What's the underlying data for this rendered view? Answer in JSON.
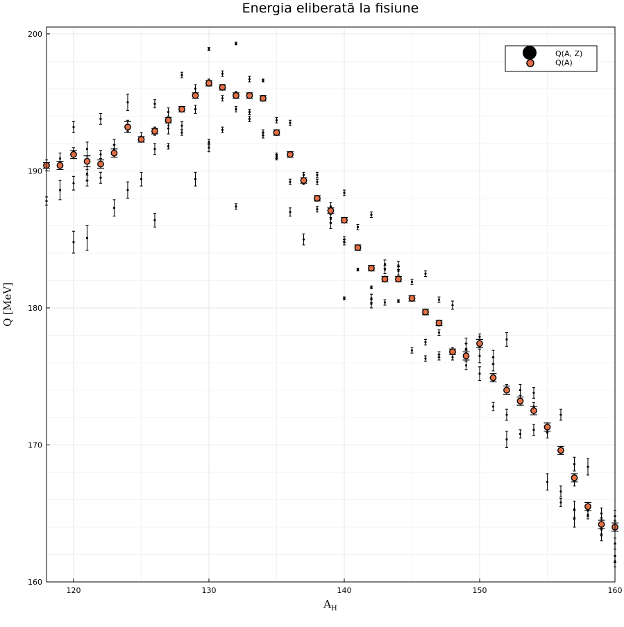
{
  "chart_data": {
    "type": "scatter",
    "title": "Energia eliberată la fisiune",
    "xlabel": "A",
    "xlabel_sub": "H",
    "ylabel": "Q  [MeV]",
    "xlim": [
      118,
      160
    ],
    "ylim": [
      160,
      200.5
    ],
    "xticks": [
      120,
      130,
      140,
      150,
      160
    ],
    "yticks": [
      160,
      170,
      180,
      190,
      200
    ],
    "grid": true,
    "legend_position": "top-right",
    "series": [
      {
        "name": "Q(A, Z)",
        "color": "#000000",
        "points": [
          [
            118,
            190.4,
            0.4
          ],
          [
            118,
            187.8,
            0.3
          ],
          [
            119,
            190.9,
            0.4
          ],
          [
            119,
            188.6,
            0.7
          ],
          [
            120,
            193.2,
            0.4
          ],
          [
            120,
            191.4,
            0.3
          ],
          [
            120,
            189.1,
            0.5
          ],
          [
            120,
            184.8,
            0.8
          ],
          [
            121,
            191.6,
            0.5
          ],
          [
            121,
            190.6,
            0.5
          ],
          [
            121,
            189.8,
            0.5
          ],
          [
            121,
            189.3,
            0.4
          ],
          [
            121,
            185.1,
            0.9
          ],
          [
            122,
            193.8,
            0.4
          ],
          [
            122,
            191.2,
            0.3
          ],
          [
            122,
            190.6,
            0.3
          ],
          [
            122,
            189.5,
            0.4
          ],
          [
            123,
            191.9,
            0.4
          ],
          [
            123,
            191.6,
            0.3
          ],
          [
            123,
            187.3,
            0.6
          ],
          [
            124,
            195.0,
            0.6
          ],
          [
            124,
            193.3,
            0.4
          ],
          [
            124,
            188.6,
            0.6
          ],
          [
            125,
            192.5,
            0.3
          ],
          [
            125,
            189.4,
            0.5
          ],
          [
            126,
            194.9,
            0.3
          ],
          [
            126,
            192.9,
            0.3
          ],
          [
            126,
            191.6,
            0.4
          ],
          [
            126,
            186.4,
            0.5
          ],
          [
            127,
            194.3,
            0.3
          ],
          [
            127,
            193.6,
            0.3
          ],
          [
            127,
            193.1,
            0.4
          ],
          [
            127,
            191.8,
            0.2
          ],
          [
            128,
            197.0,
            0.2
          ],
          [
            128,
            194.5,
            0.2
          ],
          [
            128,
            193.3,
            0.3
          ],
          [
            128,
            192.8,
            0.2
          ],
          [
            129,
            196.0,
            0.3
          ],
          [
            129,
            195.5,
            0.2
          ],
          [
            129,
            194.5,
            0.3
          ],
          [
            129,
            189.4,
            0.5
          ],
          [
            130,
            198.9,
            0.1
          ],
          [
            130,
            196.5,
            0.2
          ],
          [
            130,
            192.1,
            0.2
          ],
          [
            130,
            191.7,
            0.3
          ],
          [
            131,
            197.1,
            0.2
          ],
          [
            131,
            195.3,
            0.2
          ],
          [
            131,
            193.0,
            0.2
          ],
          [
            132,
            199.3,
            0.1
          ],
          [
            132,
            195.6,
            0.2
          ],
          [
            132,
            194.5,
            0.2
          ],
          [
            132,
            187.4,
            0.2
          ],
          [
            133,
            196.7,
            0.2
          ],
          [
            133,
            194.3,
            0.2
          ],
          [
            133,
            193.8,
            0.2
          ],
          [
            134,
            196.6,
            0.1
          ],
          [
            134,
            195.2,
            0.1
          ],
          [
            134,
            192.8,
            0.2
          ],
          [
            134,
            192.6,
            0.2
          ],
          [
            135,
            193.7,
            0.2
          ],
          [
            135,
            192.8,
            0.2
          ],
          [
            135,
            191.1,
            0.2
          ],
          [
            135,
            191.0,
            0.2
          ],
          [
            136,
            193.5,
            0.2
          ],
          [
            136,
            191.2,
            0.2
          ],
          [
            136,
            189.2,
            0.2
          ],
          [
            136,
            187.0,
            0.3
          ],
          [
            137,
            189.7,
            0.2
          ],
          [
            137,
            189.2,
            0.2
          ],
          [
            137,
            185.0,
            0.4
          ],
          [
            138,
            189.7,
            0.2
          ],
          [
            138,
            189.2,
            0.2
          ],
          [
            138,
            188.0,
            0.2
          ],
          [
            138,
            187.2,
            0.2
          ],
          [
            139,
            187.4,
            0.3
          ],
          [
            139,
            186.5,
            0.3
          ],
          [
            139,
            186.2,
            0.4
          ],
          [
            140,
            188.4,
            0.2
          ],
          [
            140,
            185.0,
            0.2
          ],
          [
            140,
            184.8,
            0.2
          ],
          [
            140,
            180.7,
            0.1
          ],
          [
            141,
            185.9,
            0.2
          ],
          [
            141,
            184.4,
            0.2
          ],
          [
            141,
            182.8,
            0.1
          ],
          [
            142,
            186.8,
            0.2
          ],
          [
            142,
            183.0,
            0.1
          ],
          [
            142,
            181.5,
            0.1
          ],
          [
            142,
            180.7,
            0.3
          ],
          [
            142,
            180.3,
            0.3
          ],
          [
            143,
            183.2,
            0.3
          ],
          [
            143,
            182.8,
            0.3
          ],
          [
            143,
            182.1,
            0.2
          ],
          [
            143,
            180.4,
            0.2
          ],
          [
            144,
            183.1,
            0.3
          ],
          [
            144,
            182.7,
            0.3
          ],
          [
            144,
            182.2,
            0.1
          ],
          [
            144,
            180.5,
            0.1
          ],
          [
            145,
            181.9,
            0.2
          ],
          [
            145,
            180.7,
            0.2
          ],
          [
            145,
            176.9,
            0.2
          ],
          [
            146,
            182.5,
            0.2
          ],
          [
            146,
            179.7,
            0.2
          ],
          [
            146,
            177.5,
            0.2
          ],
          [
            146,
            176.3,
            0.2
          ],
          [
            147,
            180.6,
            0.2
          ],
          [
            147,
            178.2,
            0.2
          ],
          [
            147,
            176.6,
            0.2
          ],
          [
            147,
            176.4,
            0.2
          ],
          [
            148,
            180.2,
            0.3
          ],
          [
            148,
            176.9,
            0.2
          ],
          [
            148,
            176.4,
            0.2
          ],
          [
            149,
            177.4,
            0.4
          ],
          [
            149,
            177.0,
            0.4
          ],
          [
            149,
            176.5,
            0.4
          ],
          [
            149,
            175.8,
            0.3
          ],
          [
            150,
            177.9,
            0.2
          ],
          [
            150,
            177.4,
            0.3
          ],
          [
            150,
            176.5,
            0.5
          ],
          [
            150,
            175.2,
            0.5
          ],
          [
            151,
            176.4,
            0.5
          ],
          [
            151,
            175.9,
            0.5
          ],
          [
            151,
            175.0,
            0.2
          ],
          [
            151,
            172.8,
            0.3
          ],
          [
            152,
            177.7,
            0.5
          ],
          [
            152,
            174.1,
            0.3
          ],
          [
            152,
            172.2,
            0.4
          ],
          [
            152,
            170.4,
            0.6
          ],
          [
            153,
            174.0,
            0.4
          ],
          [
            153,
            173.3,
            0.3
          ],
          [
            153,
            170.8,
            0.3
          ],
          [
            154,
            173.8,
            0.4
          ],
          [
            154,
            172.8,
            0.3
          ],
          [
            154,
            171.1,
            0.4
          ],
          [
            155,
            171.3,
            0.3
          ],
          [
            155,
            170.9,
            0.4
          ],
          [
            155,
            167.3,
            0.6
          ],
          [
            156,
            172.2,
            0.4
          ],
          [
            156,
            169.7,
            0.2
          ],
          [
            156,
            166.6,
            0.4
          ],
          [
            156,
            165.8,
            0.3
          ],
          [
            157,
            168.6,
            0.5
          ],
          [
            157,
            167.4,
            0.4
          ],
          [
            157,
            165.3,
            0.6
          ],
          [
            157,
            164.6,
            0.6
          ],
          [
            158,
            168.4,
            0.6
          ],
          [
            158,
            165.2,
            0.4
          ],
          [
            158,
            164.9,
            0.3
          ],
          [
            159,
            165.0,
            0.4
          ],
          [
            159,
            164.3,
            0.4
          ],
          [
            159,
            163.9,
            0.4
          ],
          [
            159,
            163.4,
            0.4
          ],
          [
            160,
            164.8,
            0.4
          ],
          [
            160,
            164.1,
            0.4
          ],
          [
            160,
            162.8,
            0.4
          ],
          [
            160,
            161.9,
            0.5
          ],
          [
            160,
            161.5,
            0.4
          ]
        ]
      },
      {
        "name": "Q(A)",
        "color": "#e26f46",
        "points": [
          [
            118,
            190.4,
            0.2
          ],
          [
            119,
            190.4,
            0.3
          ],
          [
            120,
            191.2,
            0.3
          ],
          [
            121,
            190.7,
            0.4
          ],
          [
            122,
            190.5,
            0.3
          ],
          [
            123,
            191.3,
            0.3
          ],
          [
            124,
            193.2,
            0.4
          ],
          [
            125,
            192.3,
            0.2
          ],
          [
            126,
            192.9,
            0.2
          ],
          [
            127,
            193.7,
            0.2
          ],
          [
            128,
            194.5,
            0.2
          ],
          [
            129,
            195.5,
            0.2
          ],
          [
            130,
            196.4,
            0.2
          ],
          [
            131,
            196.1,
            0.2
          ],
          [
            132,
            195.5,
            0.2
          ],
          [
            133,
            195.5,
            0.2
          ],
          [
            134,
            195.3,
            0.2
          ],
          [
            135,
            192.8,
            0.2
          ],
          [
            136,
            191.2,
            0.2
          ],
          [
            137,
            189.3,
            0.2
          ],
          [
            138,
            188.0,
            0.2
          ],
          [
            139,
            187.1,
            0.2
          ],
          [
            140,
            186.4,
            0.2
          ],
          [
            141,
            184.4,
            0.2
          ],
          [
            142,
            182.9,
            0.2
          ],
          [
            143,
            182.1,
            0.2
          ],
          [
            144,
            182.1,
            0.2
          ],
          [
            145,
            180.7,
            0.2
          ],
          [
            146,
            179.7,
            0.2
          ],
          [
            147,
            178.9,
            0.2
          ],
          [
            148,
            176.8,
            0.2
          ],
          [
            149,
            176.5,
            0.3
          ],
          [
            150,
            177.4,
            0.3
          ],
          [
            151,
            174.9,
            0.3
          ],
          [
            152,
            174.0,
            0.3
          ],
          [
            153,
            173.2,
            0.3
          ],
          [
            154,
            172.5,
            0.3
          ],
          [
            155,
            171.3,
            0.3
          ],
          [
            156,
            169.6,
            0.3
          ],
          [
            157,
            167.6,
            0.3
          ],
          [
            158,
            165.5,
            0.3
          ],
          [
            159,
            164.2,
            0.3
          ],
          [
            160,
            164.0,
            0.3
          ]
        ]
      }
    ]
  }
}
